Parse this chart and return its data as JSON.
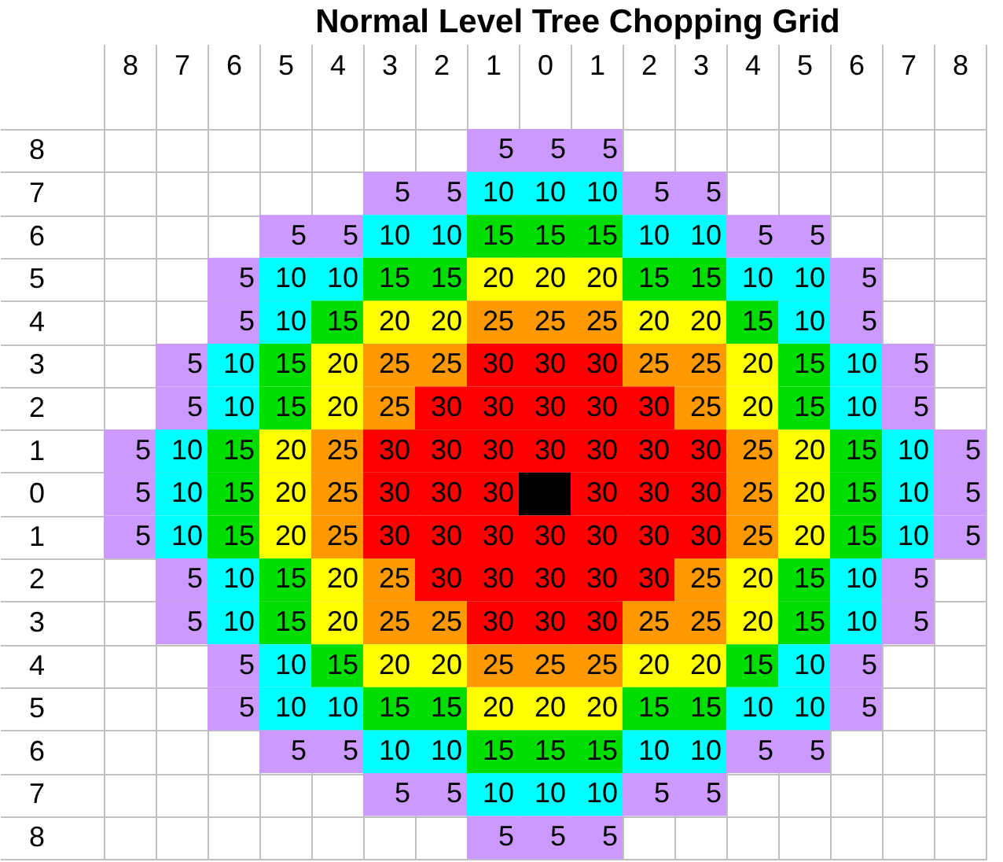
{
  "chart_data": {
    "type": "heatmap",
    "title": "Normal Level Tree Chopping Grid",
    "categories": [
      "8",
      "7",
      "6",
      "5",
      "4",
      "3",
      "2",
      "1",
      "0",
      "1",
      "2",
      "3",
      "4",
      "5",
      "6",
      "7",
      "8"
    ],
    "y_categories": [
      "8",
      "7",
      "6",
      "5",
      "4",
      "3",
      "2",
      "1",
      "0",
      "1",
      "2",
      "3",
      "4",
      "5",
      "6",
      "7",
      "8"
    ],
    "cells": [
      [
        null,
        null,
        null,
        null,
        null,
        null,
        null,
        5,
        5,
        5,
        null,
        null,
        null,
        null,
        null,
        null,
        null
      ],
      [
        null,
        null,
        null,
        null,
        null,
        5,
        5,
        10,
        10,
        10,
        5,
        5,
        null,
        null,
        null,
        null,
        null
      ],
      [
        null,
        null,
        null,
        5,
        5,
        10,
        10,
        15,
        15,
        15,
        10,
        10,
        5,
        5,
        null,
        null,
        null
      ],
      [
        null,
        null,
        5,
        10,
        10,
        15,
        15,
        20,
        20,
        20,
        15,
        15,
        10,
        10,
        5,
        null,
        null
      ],
      [
        null,
        null,
        5,
        10,
        15,
        20,
        20,
        25,
        25,
        25,
        20,
        20,
        15,
        10,
        5,
        null,
        null
      ],
      [
        null,
        5,
        10,
        15,
        20,
        25,
        25,
        30,
        30,
        30,
        25,
        25,
        20,
        15,
        10,
        5,
        null
      ],
      [
        null,
        5,
        10,
        15,
        20,
        25,
        30,
        30,
        30,
        30,
        30,
        25,
        20,
        15,
        10,
        5,
        null
      ],
      [
        5,
        10,
        15,
        20,
        25,
        30,
        30,
        30,
        30,
        30,
        30,
        30,
        25,
        20,
        15,
        10,
        5
      ],
      [
        5,
        10,
        15,
        20,
        25,
        30,
        30,
        30,
        null,
        30,
        30,
        30,
        25,
        20,
        15,
        10,
        5
      ],
      [
        5,
        10,
        15,
        20,
        25,
        30,
        30,
        30,
        30,
        30,
        30,
        30,
        25,
        20,
        15,
        10,
        5
      ],
      [
        null,
        5,
        10,
        15,
        20,
        25,
        30,
        30,
        30,
        30,
        30,
        25,
        20,
        15,
        10,
        5,
        null
      ],
      [
        null,
        5,
        10,
        15,
        20,
        25,
        25,
        30,
        30,
        30,
        25,
        25,
        20,
        15,
        10,
        5,
        null
      ],
      [
        null,
        null,
        5,
        10,
        15,
        20,
        20,
        25,
        25,
        25,
        20,
        20,
        15,
        10,
        5,
        null,
        null
      ],
      [
        null,
        null,
        5,
        10,
        10,
        15,
        15,
        20,
        20,
        20,
        15,
        15,
        10,
        10,
        5,
        null,
        null
      ],
      [
        null,
        null,
        null,
        5,
        5,
        10,
        10,
        15,
        15,
        15,
        10,
        10,
        5,
        5,
        null,
        null,
        null
      ],
      [
        null,
        null,
        null,
        null,
        null,
        5,
        5,
        10,
        10,
        10,
        5,
        5,
        null,
        null,
        null,
        null,
        null
      ],
      [
        null,
        null,
        null,
        null,
        null,
        null,
        null,
        5,
        5,
        5,
        null,
        null,
        null,
        null,
        null,
        null,
        null
      ]
    ],
    "colors": [
      [
        null,
        null,
        null,
        null,
        null,
        null,
        null,
        "#cc99ff",
        "#cc99ff",
        "#cc99ff",
        null,
        null,
        null,
        null,
        null,
        null,
        null
      ],
      [
        null,
        null,
        null,
        null,
        null,
        "#cc99ff",
        "#cc99ff",
        "#00ffff",
        "#00ffff",
        "#00ffff",
        "#cc99ff",
        "#cc99ff",
        null,
        null,
        null,
        null,
        null
      ],
      [
        null,
        null,
        null,
        "#cc99ff",
        "#cc99ff",
        "#00ffff",
        "#00ffff",
        "#00dd00",
        "#00dd00",
        "#00dd00",
        "#00ffff",
        "#00ffff",
        "#cc99ff",
        "#cc99ff",
        null,
        null,
        null
      ],
      [
        null,
        null,
        "#cc99ff",
        "#00ffff",
        "#00ffff",
        "#00dd00",
        "#00dd00",
        "#ffff00",
        "#ffff00",
        "#ffff00",
        "#00dd00",
        "#00dd00",
        "#00ffff",
        "#00ffff",
        "#cc99ff",
        null,
        null
      ],
      [
        null,
        null,
        "#cc99ff",
        "#00ffff",
        "#00dd00",
        "#ffff00",
        "#ffff00",
        "#ff9900",
        "#ff9900",
        "#ff9900",
        "#ffff00",
        "#ffff00",
        "#00dd00",
        "#00ffff",
        "#cc99ff",
        null,
        null
      ],
      [
        null,
        "#cc99ff",
        "#00ffff",
        "#00dd00",
        "#ffff00",
        "#ff9900",
        "#ff9900",
        "#ff0000",
        "#ff0000",
        "#ff0000",
        "#ff9900",
        "#ff9900",
        "#ffff00",
        "#00dd00",
        "#00ffff",
        "#cc99ff",
        null
      ],
      [
        null,
        "#cc99ff",
        "#00ffff",
        "#00dd00",
        "#ffff00",
        "#ff9900",
        "#ff0000",
        "#ff0000",
        "#ff0000",
        "#ff0000",
        "#ff0000",
        "#ff9900",
        "#ffff00",
        "#00dd00",
        "#00ffff",
        "#cc99ff",
        null
      ],
      [
        "#cc99ff",
        "#00ffff",
        "#00dd00",
        "#ffff00",
        "#ff9900",
        "#ff0000",
        "#ff0000",
        "#ff0000",
        "#ff0000",
        "#ff0000",
        "#ff0000",
        "#ff0000",
        "#ff9900",
        "#ffff00",
        "#00dd00",
        "#00ffff",
        "#cc99ff"
      ],
      [
        "#cc99ff",
        "#00ffff",
        "#00dd00",
        "#ffff00",
        "#ff9900",
        "#ff0000",
        "#ff0000",
        "#ff0000",
        "#000000",
        "#ff0000",
        "#ff0000",
        "#ff0000",
        "#ff9900",
        "#ffff00",
        "#00dd00",
        "#00ffff",
        "#cc99ff"
      ],
      [
        "#cc99ff",
        "#00ffff",
        "#00dd00",
        "#ffff00",
        "#ff9900",
        "#ff0000",
        "#ff0000",
        "#ff0000",
        "#ff0000",
        "#ff0000",
        "#ff0000",
        "#ff0000",
        "#ff9900",
        "#ffff00",
        "#00dd00",
        "#00ffff",
        "#cc99ff"
      ],
      [
        null,
        "#cc99ff",
        "#00ffff",
        "#00dd00",
        "#ffff00",
        "#ff9900",
        "#ff0000",
        "#ff0000",
        "#ff0000",
        "#ff0000",
        "#ff0000",
        "#ff9900",
        "#ffff00",
        "#00dd00",
        "#00ffff",
        "#cc99ff",
        null
      ],
      [
        null,
        "#cc99ff",
        "#00ffff",
        "#00dd00",
        "#ffff00",
        "#ff9900",
        "#ff9900",
        "#ff0000",
        "#ff0000",
        "#ff0000",
        "#ff9900",
        "#ff9900",
        "#ffff00",
        "#00dd00",
        "#00ffff",
        "#cc99ff",
        null
      ],
      [
        null,
        null,
        "#cc99ff",
        "#00ffff",
        "#00dd00",
        "#ffff00",
        "#ffff00",
        "#ff9900",
        "#ff9900",
        "#ff9900",
        "#ffff00",
        "#ffff00",
        "#00dd00",
        "#00ffff",
        "#cc99ff",
        null,
        null
      ],
      [
        null,
        null,
        "#cc99ff",
        "#00ffff",
        "#00ffff",
        "#00dd00",
        "#00dd00",
        "#ffff00",
        "#ffff00",
        "#ffff00",
        "#00dd00",
        "#00dd00",
        "#00ffff",
        "#00ffff",
        "#cc99ff",
        null,
        null
      ],
      [
        null,
        null,
        null,
        "#cc99ff",
        "#cc99ff",
        "#00ffff",
        "#00ffff",
        "#00dd00",
        "#00dd00",
        "#00dd00",
        "#00ffff",
        "#00ffff",
        "#cc99ff",
        "#cc99ff",
        null,
        null,
        null
      ],
      [
        null,
        null,
        null,
        null,
        null,
        "#cc99ff",
        "#cc99ff",
        "#00ffff",
        "#00ffff",
        "#00ffff",
        "#cc99ff",
        "#cc99ff",
        null,
        null,
        null,
        null,
        null
      ],
      [
        null,
        null,
        null,
        null,
        null,
        null,
        null,
        "#cc99ff",
        "#cc99ff",
        "#cc99ff",
        null,
        null,
        null,
        null,
        null,
        null,
        null
      ]
    ],
    "data_labels": true,
    "grid": true
  }
}
